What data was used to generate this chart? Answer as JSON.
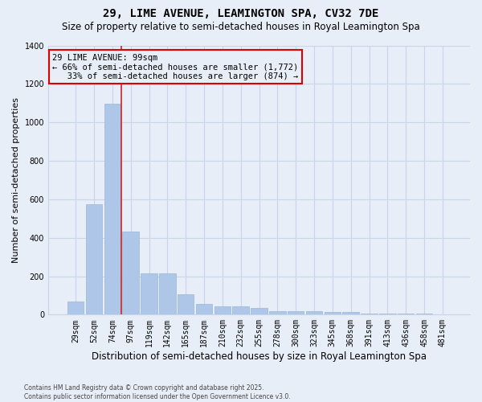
{
  "title": "29, LIME AVENUE, LEAMINGTON SPA, CV32 7DE",
  "subtitle": "Size of property relative to semi-detached houses in Royal Leamington Spa",
  "xlabel": "Distribution of semi-detached houses by size in Royal Leamington Spa",
  "ylabel": "Number of semi-detached properties",
  "categories": [
    "29sqm",
    "52sqm",
    "74sqm",
    "97sqm",
    "119sqm",
    "142sqm",
    "165sqm",
    "187sqm",
    "210sqm",
    "232sqm",
    "255sqm",
    "278sqm",
    "300sqm",
    "323sqm",
    "345sqm",
    "368sqm",
    "391sqm",
    "413sqm",
    "436sqm",
    "458sqm",
    "481sqm"
  ],
  "values": [
    70,
    575,
    1095,
    430,
    215,
    215,
    105,
    55,
    42,
    42,
    35,
    20,
    20,
    17,
    12,
    12,
    7,
    7,
    4,
    4,
    3
  ],
  "bar_color": "#aec6e8",
  "bar_edge_color": "#9ab8d8",
  "grid_color": "#c8d4e8",
  "background_color": "#e8eef8",
  "annotation_line1": "29 LIME AVENUE: 99sqm",
  "annotation_line2": "← 66% of semi-detached houses are smaller (1,772)",
  "annotation_line3": "   33% of semi-detached houses are larger (874) →",
  "annotation_box_color": "#dd0000",
  "vline_index": 2.5,
  "ylim": [
    0,
    1400
  ],
  "yticks": [
    0,
    200,
    400,
    600,
    800,
    1000,
    1200,
    1400
  ],
  "footer": "Contains HM Land Registry data © Crown copyright and database right 2025.\nContains public sector information licensed under the Open Government Licence v3.0.",
  "title_fontsize": 10,
  "subtitle_fontsize": 8.5,
  "xlabel_fontsize": 8.5,
  "ylabel_fontsize": 8,
  "tick_fontsize": 7,
  "annotation_fontsize": 7.5,
  "footer_fontsize": 5.5
}
